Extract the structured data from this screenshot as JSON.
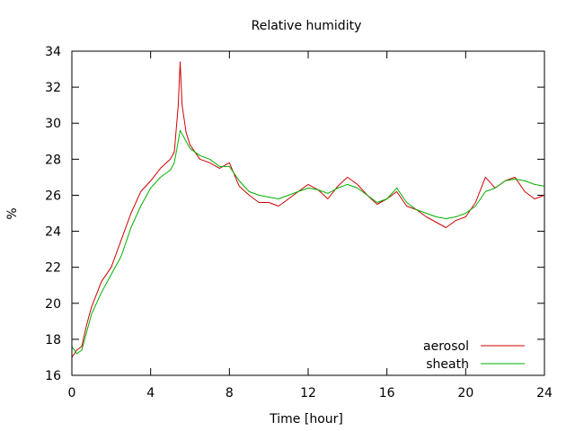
{
  "chart_data": {
    "type": "line",
    "title": "Relative humidity",
    "xlabel": "Time [hour]",
    "ylabel": "%",
    "xlim": [
      0,
      24
    ],
    "ylim": [
      16,
      34
    ],
    "xticks": [
      0,
      4,
      8,
      12,
      16,
      20,
      24
    ],
    "yticks": [
      16,
      18,
      20,
      22,
      24,
      26,
      28,
      30,
      32,
      34
    ],
    "grid": false,
    "legend_position": "bottom-right",
    "series": [
      {
        "name": "aerosol",
        "color": "#d00000",
        "x": [
          0,
          0.25,
          0.5,
          0.75,
          1,
          1.5,
          2,
          2.5,
          3,
          3.5,
          4,
          4.5,
          5,
          5.2,
          5.4,
          5.5,
          5.6,
          5.8,
          6,
          6.5,
          7,
          7.5,
          8,
          8.5,
          9,
          9.5,
          10,
          10.5,
          11,
          11.5,
          12,
          12.5,
          13,
          13.5,
          14,
          14.5,
          15,
          15.5,
          16,
          16.5,
          17,
          17.5,
          18,
          18.5,
          19,
          19.5,
          20,
          20.5,
          21,
          21.5,
          22,
          22.5,
          23,
          23.5,
          24
        ],
        "y": [
          17.0,
          17.4,
          17.6,
          18.8,
          19.8,
          21.2,
          22.0,
          23.5,
          25.0,
          26.2,
          26.8,
          27.5,
          28.0,
          28.4,
          31.0,
          33.4,
          31.0,
          29.5,
          28.8,
          28.0,
          27.8,
          27.5,
          27.8,
          26.5,
          26.0,
          25.6,
          25.6,
          25.4,
          25.8,
          26.2,
          26.6,
          26.3,
          25.8,
          26.5,
          27.0,
          26.6,
          26.0,
          25.5,
          25.8,
          26.2,
          25.4,
          25.2,
          24.8,
          24.5,
          24.2,
          24.6,
          24.8,
          25.6,
          27.0,
          26.4,
          26.8,
          27.0,
          26.2,
          25.8,
          26.0
        ]
      },
      {
        "name": "sheath",
        "color": "#00b000",
        "x": [
          0,
          0.25,
          0.5,
          0.75,
          1,
          1.5,
          2,
          2.5,
          3,
          3.5,
          4,
          4.5,
          5,
          5.2,
          5.4,
          5.5,
          5.6,
          5.8,
          6,
          6.5,
          7,
          7.5,
          8,
          8.5,
          9,
          9.5,
          10,
          10.5,
          11,
          11.5,
          12,
          12.5,
          13,
          13.5,
          14,
          14.5,
          15,
          15.5,
          16,
          16.5,
          17,
          17.5,
          18,
          18.5,
          19,
          19.5,
          20,
          20.5,
          21,
          21.5,
          22,
          22.5,
          23,
          23.5,
          24
        ],
        "y": [
          17.6,
          17.2,
          17.4,
          18.4,
          19.4,
          20.6,
          21.6,
          22.6,
          24.2,
          25.4,
          26.4,
          27.0,
          27.4,
          27.8,
          29.0,
          29.6,
          29.4,
          29.0,
          28.6,
          28.2,
          28.0,
          27.6,
          27.6,
          26.8,
          26.2,
          26.0,
          25.9,
          25.8,
          26.0,
          26.2,
          26.4,
          26.3,
          26.1,
          26.4,
          26.6,
          26.4,
          26.0,
          25.6,
          25.8,
          26.4,
          25.6,
          25.2,
          25.0,
          24.8,
          24.7,
          24.8,
          25.0,
          25.4,
          26.2,
          26.4,
          26.8,
          26.9,
          26.8,
          26.6,
          26.5
        ]
      }
    ]
  }
}
